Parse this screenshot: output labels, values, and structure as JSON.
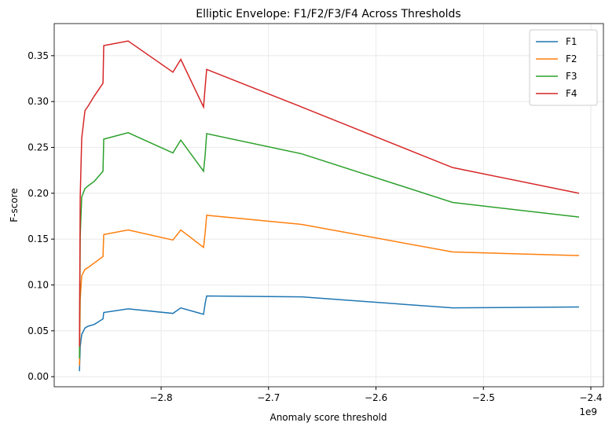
{
  "chart_data": {
    "type": "line",
    "title": "Elliptic Envelope: F1/F2/F3/F4 Across Thresholds",
    "x_label": "Anomaly score threshold",
    "y_label": "F-score",
    "x_offset_label": "1e9",
    "x": [
      -2.876,
      -2.8753,
      -2.8739,
      -2.8709,
      -2.868,
      -2.8622,
      -2.8541,
      -2.8534,
      -2.8307,
      -2.789,
      -2.7817,
      -2.7605,
      -2.759,
      -2.7576,
      -2.6691,
      -2.5287,
      -2.411
    ],
    "series": [
      {
        "name": "F1",
        "color": "#1f77b4",
        "values": [
          0.006,
          0.033,
          0.046,
          0.053,
          0.055,
          0.057,
          0.063,
          0.07,
          0.074,
          0.069,
          0.075,
          0.068,
          0.08,
          0.088,
          0.087,
          0.075,
          0.076
        ]
      },
      {
        "name": "F2",
        "color": "#ff7f0e",
        "values": [
          0.012,
          0.085,
          0.11,
          0.117,
          0.119,
          0.124,
          0.131,
          0.155,
          0.16,
          0.149,
          0.16,
          0.141,
          0.157,
          0.176,
          0.166,
          0.136,
          0.132
        ]
      },
      {
        "name": "F3",
        "color": "#2ca02c",
        "values": [
          0.02,
          0.154,
          0.196,
          0.205,
          0.208,
          0.213,
          0.224,
          0.259,
          0.266,
          0.244,
          0.258,
          0.224,
          0.242,
          0.265,
          0.243,
          0.19,
          0.174
        ]
      },
      {
        "name": "F4",
        "color": "#d62728",
        "values": [
          0.033,
          0.196,
          0.26,
          0.29,
          0.295,
          0.306,
          0.32,
          0.361,
          0.366,
          0.332,
          0.346,
          0.294,
          0.316,
          0.335,
          0.294,
          0.228,
          0.2
        ]
      }
    ],
    "xlim": [
      -2.8995,
      -2.3883
    ],
    "ylim": [
      -0.011,
      0.385
    ],
    "xticks": [
      {
        "value": -2.8,
        "label": "−2.8"
      },
      {
        "value": -2.7,
        "label": "−2.7"
      },
      {
        "value": -2.6,
        "label": "−2.6"
      },
      {
        "value": -2.5,
        "label": "−2.5"
      },
      {
        "value": -2.4,
        "label": "−2.4"
      }
    ],
    "yticks": [
      {
        "value": 0,
        "label": "0.00"
      },
      {
        "value": 0.05,
        "label": "0.05"
      },
      {
        "value": 0.1,
        "label": "0.10"
      },
      {
        "value": 0.15,
        "label": "0.15"
      },
      {
        "value": 0.2,
        "label": "0.20"
      },
      {
        "value": 0.25,
        "label": "0.25"
      },
      {
        "value": 0.3,
        "label": "0.30"
      },
      {
        "value": 0.35,
        "label": "0.35"
      }
    ],
    "grid": true,
    "legend": "upper right"
  }
}
